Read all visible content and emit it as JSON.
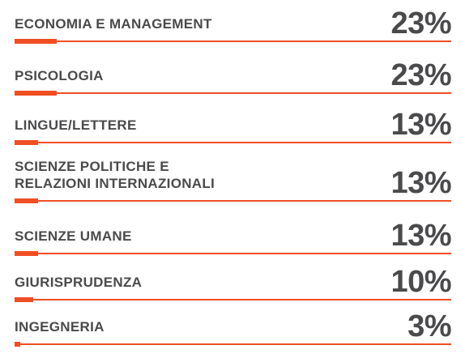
{
  "chart_data": {
    "type": "bar",
    "orientation": "horizontal",
    "categories": [
      "ECONOMIA E MANAGEMENT",
      "PSICOLOGIA",
      "LINGUE/LETTERE",
      "SCIENZE POLITICHE E\nRELAZIONI INTERNAZIONALI",
      "SCIENZE UMANE",
      "GIURISPRUDENZA",
      "INGEGNERIA"
    ],
    "values": [
      23,
      23,
      13,
      13,
      13,
      10,
      3
    ],
    "value_labels": [
      "23%",
      "23%",
      "13%",
      "13%",
      "13%",
      "10%",
      "3%"
    ],
    "xlim": [
      0,
      100
    ],
    "grid": false,
    "legend": "none",
    "colors": {
      "bar": "#f04e23",
      "text": "#4a4a4c"
    }
  }
}
